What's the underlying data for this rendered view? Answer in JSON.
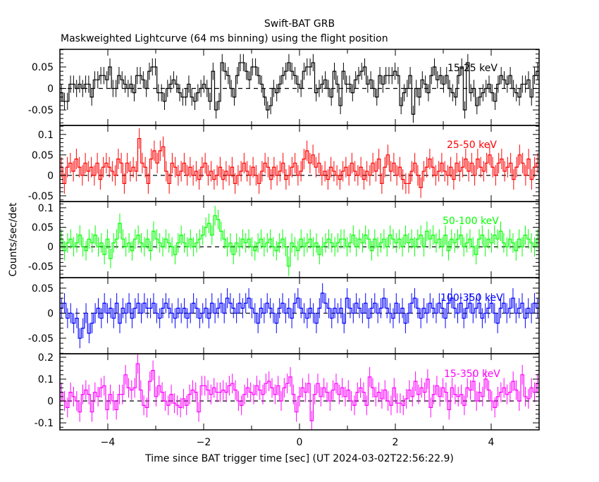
{
  "chart_data": [
    {
      "type": "line",
      "title": "Swift-BAT GRB",
      "subtitle": "Maskweighted Lightcurve (64 ms binning) using the flight position",
      "xlabel": "Time since BAT trigger time [sec] (UT 2024-03-02T22:56:22.9)",
      "ylabel": "Counts/sec/det",
      "xlim": [
        -5,
        5
      ],
      "x_ticks": [
        "-4",
        "-2",
        "0",
        "2",
        "4"
      ],
      "panels": [
        {
          "label": "15-25 keV",
          "color": "#000000",
          "ylim": [
            -0.086,
            0.091
          ],
          "y_ticks": [
            "0.05",
            "0",
            "-0.05"
          ],
          "y_tick_values": [
            0.05,
            0,
            -0.05
          ],
          "error": 0.02,
          "values": [
            -0.01,
            -0.03,
            -0.03,
            0.01,
            0.01,
            0,
            0.01,
            0,
            0.01,
            0.01,
            -0.02,
            0.02,
            0.02,
            0.03,
            0.03,
            0.02,
            0.05,
            0,
            0,
            0.03,
            0.02,
            0.01,
            0,
            0.01,
            -0.01,
            0.03,
            0.03,
            0.02,
            0,
            0.04,
            0.05,
            0.05,
            -0.01,
            -0.01,
            -0.03,
            0,
            0.01,
            0.02,
            0.01,
            -0.01,
            -0.02,
            -0.02,
            0.01,
            -0.02,
            -0.03,
            -0.01,
            0,
            0.01,
            0,
            -0.03,
            0.04,
            -0.05,
            -0.03,
            0.06,
            0.04,
            0.03,
            0,
            -0.02,
            0.03,
            0.06,
            0.06,
            0.04,
            0.02,
            0.05,
            0.05,
            0.03,
            0.01,
            -0.02,
            -0.05,
            -0.04,
            0,
            -0.01,
            0.01,
            0.03,
            0.04,
            0.06,
            0.04,
            0.03,
            0.01,
            0,
            0.04,
            0.05,
            0.05,
            0.06,
            -0.01,
            0,
            0.01,
            0.02,
            0,
            -0.02,
            0.04,
            0.01,
            -0.04,
            0.04,
            0.01,
            0.01,
            -0.01,
            0.02,
            0.03,
            0.04,
            0.05,
            0.01,
            0.02,
            0,
            -0.02,
            0.03,
            0.01,
            0.03,
            0.03,
            0.03,
            0.04,
            0.03,
            -0.04,
            -0.01,
            0,
            0.03,
            -0.06,
            0,
            -0.02,
            0.02,
            0.01,
            -0.01,
            0.03,
            0.05,
            0.02,
            0.03,
            0.01,
            0.03,
            0,
            -0.01,
            -0.02,
            0.03,
            0.05,
            -0.05,
            0.06,
            -0.01,
            0,
            -0.04,
            -0.02,
            -0.01,
            0,
            0.01,
            -0.01,
            -0.03,
            0.01,
            0.03,
            0.02,
            0.01,
            0.03,
            0,
            -0.01,
            -0.02,
            0.01,
            0.01,
            0.02,
            -0.02,
            0.03,
            0.04
          ]
        },
        {
          "label": "25-50 keV",
          "color": "#ff0000",
          "ylim": [
            -0.064,
            0.122
          ],
          "y_ticks": [
            "0.1",
            "0.05",
            "0",
            "-0.05"
          ],
          "y_tick_values": [
            0.1,
            0.05,
            0,
            -0.05
          ],
          "error": 0.025,
          "values": [
            0.02,
            -0.02,
            0.02,
            0.03,
            0.01,
            0.04,
            0.02,
            0,
            0.03,
            0.01,
            0.02,
            0,
            0.03,
            -0.01,
            0.02,
            0.03,
            0.02,
            0.01,
            0,
            0.04,
            0.03,
            -0.02,
            0.03,
            0.01,
            0.02,
            0.01,
            0.09,
            0.03,
            0.02,
            -0.02,
            0.04,
            0.06,
            0.03,
            0.06,
            0.07,
            0.01,
            -0.02,
            0.03,
            0.02,
            0,
            0.01,
            0.03,
            0,
            0.02,
            0,
            0.01,
            -0.01,
            0.02,
            0.03,
            0,
            0.01,
            -0.01,
            0,
            0.02,
            -0.01,
            0.01,
            0,
            0.02,
            -0.02,
            0,
            0.01,
            0.03,
            0.01,
            0,
            0.02,
            0,
            -0.02,
            0.01,
            0.03,
            0.02,
            -0.01,
            0.02,
            0,
            0.01,
            0.03,
            -0.01,
            0,
            0.02,
            0.03,
            0,
            0.01,
            0.04,
            0.06,
            0.03,
            0.05,
            0.02,
            0.03,
            0,
            0.01,
            -0.01,
            0.02,
            0.01,
            0,
            -0.01,
            0.01,
            0.02,
            0,
            0.03,
            0.01,
            0,
            0.02,
            -0.01,
            0.01,
            0,
            0.03,
            0.01,
            0.04,
            -0.02,
            0.02,
            0.05,
            0.01,
            0.03,
            0,
            0.02,
            -0.01,
            -0.02,
            -0.02,
            0.01,
            0.03,
            0,
            -0.03,
            0.01,
            0.02,
            0.04,
            0.02,
            0,
            0.01,
            0.03,
            0.01,
            0,
            0.02,
            -0.01,
            0.03,
            0.01,
            0.02,
            0.04,
            0.01,
            0.03,
            0,
            0.04,
            0.02,
            0.01,
            0.03,
            0.05,
            0.02,
            0,
            0.03,
            0.04,
            0.01,
            0.02,
            0.03,
            -0.01,
            0.02,
            0.05,
            0.03,
            0,
            0.04,
            -0.01,
            0.02,
            0.03
          ]
        },
        {
          "label": "50-100 keV",
          "color": "#00ff00",
          "ylim": [
            -0.079,
            0.116
          ],
          "y_ticks": [
            "0.1",
            "0.05",
            "0",
            "-0.05"
          ],
          "y_tick_values": [
            0.1,
            0.05,
            0,
            -0.05
          ],
          "error": 0.025,
          "values": [
            0.02,
            -0.01,
            0.01,
            0.02,
            0,
            0.01,
            0.03,
            0,
            -0.01,
            0.02,
            0.01,
            0.03,
            0,
            0.01,
            -0.02,
            0.02,
            -0.03,
            0.01,
            0.02,
            0.06,
            0.02,
            0,
            0.01,
            -0.01,
            0.02,
            0.03,
            0.01,
            0,
            0.02,
            -0.01,
            0.04,
            0.02,
            0.01,
            0,
            0.02,
            0.01,
            0,
            -0.02,
            0.01,
            0.03,
            0.01,
            0,
            0.02,
            0,
            0.01,
            0.02,
            0.03,
            0.05,
            0.06,
            0.03,
            0.08,
            0.07,
            0.04,
            0.02,
            0,
            0.01,
            -0.02,
            0.01,
            0,
            0.02,
            0.01,
            0.02,
            0,
            -0.01,
            0.01,
            0.02,
            0,
            0.01,
            0.02,
            0,
            -0.01,
            0.01,
            0.02,
            0,
            -0.05,
            0.01,
            0,
            -0.01,
            0.02,
            0,
            0.01,
            0.02,
            0,
            0.01,
            -0.02,
            0,
            0.01,
            0.02,
            0.01,
            0,
            0.01,
            0.02,
            0.02,
            0,
            0.01,
            0.03,
            0,
            0.02,
            0.01,
            0.03,
            0.02,
            -0.01,
            0.02,
            0,
            0.01,
            0.02,
            0,
            0.03,
            0.02,
            0.01,
            0.02,
            0,
            0.03,
            0.01,
            0.02,
            0,
            0.02,
            0.03,
            0,
            0.04,
            0.02,
            0.03,
            0.01,
            0.02,
            0,
            0.03,
            -0.01,
            0.02,
            0.01,
            0.02,
            0.03,
            0,
            0.01,
            0.02,
            0,
            -0.02,
            0.02,
            0.03,
            0,
            0.02,
            0.01,
            0.03,
            0.02,
            0.04,
            0.01,
            0,
            0.02,
            0.01,
            -0.01,
            0.02,
            0,
            0.03,
            0.02,
            0.01,
            0,
            0.02
          ]
        },
        {
          "label": "100-350 keV",
          "color": "#0000ff",
          "ylim": [
            -0.081,
            0.071
          ],
          "y_ticks": [
            "0.05",
            "0",
            "-0.05"
          ],
          "y_tick_values": [
            0.05,
            0,
            -0.05
          ],
          "error": 0.02,
          "values": [
            0.01,
            0.02,
            -0.01,
            0,
            -0.02,
            -0.01,
            -0.05,
            -0.03,
            0,
            -0.04,
            -0.02,
            0,
            0.01,
            -0.01,
            0.02,
            0,
            0.01,
            -0.01,
            0.02,
            -0.02,
            0.01,
            0,
            0.02,
            -0.01,
            0.01,
            0.02,
            0,
            0.02,
            0.01,
            0.01,
            0.02,
            0,
            -0.01,
            0.01,
            0.02,
            0.01,
            0,
            -0.01,
            0.01,
            0,
            0.01,
            -0.01,
            0,
            0.02,
            0.01,
            -0.01,
            0,
            0.01,
            -0.01,
            0.02,
            0,
            0.01,
            0.02,
            0,
            0.03,
            0.02,
            0.01,
            0,
            0.02,
            0.01,
            0.02,
            0.03,
            0.01,
            0,
            -0.02,
            0.01,
            0,
            0.02,
            0.01,
            0,
            -0.02,
            0.01,
            0.02,
            0,
            0.01,
            -0.01,
            0.02,
            0.03,
            0.01,
            0,
            -0.01,
            0.01,
            0,
            -0.02,
            0.01,
            0.04,
            0.02,
            0.01,
            -0.01,
            0.01,
            0,
            0.01,
            -0.02,
            0.03,
            0.01,
            0,
            0.02,
            0.01,
            0,
            0.02,
            -0.01,
            0.01,
            0.02,
            0,
            0.01,
            0.03,
            0.01,
            0,
            -0.01,
            0.02,
            0,
            0.01,
            -0.02,
            0,
            0.02,
            0.03,
            0.01,
            -0.01,
            0.01,
            0,
            0.02,
            0.01,
            0,
            0.02,
            0.01,
            -0.01,
            0.02,
            0.03,
            0.01,
            0,
            0.02,
            -0.01,
            0.01,
            0.02,
            0,
            0.01,
            0.02,
            -0.01,
            0,
            0.01,
            0.02,
            0,
            -0.02,
            0.01,
            0.02,
            0,
            0.01,
            0.03,
            0,
            0.01,
            0.02,
            -0.01,
            0.01,
            0,
            0.02,
            0.01
          ]
        },
        {
          "label": "15-350 keV",
          "color": "#ff00ff",
          "ylim": [
            -0.132,
            0.216
          ],
          "y_ticks": [
            "0.2",
            "0.1",
            "0",
            "-0.1"
          ],
          "y_tick_values": [
            0.2,
            0.1,
            0,
            -0.1
          ],
          "error": 0.045,
          "values": [
            0.04,
            0,
            -0.03,
            0.04,
            0.02,
            0,
            -0.05,
            0.03,
            0.05,
            0.03,
            -0.05,
            0.04,
            0.02,
            0.06,
            0.07,
            -0.04,
            0.03,
            0,
            -0.04,
            0.03,
            0.03,
            0.12,
            0.06,
            0.05,
            0.06,
            0.17,
            0.05,
            -0.02,
            -0.03,
            0.09,
            0.14,
            0.02,
            0.07,
            0.04,
            0,
            -0.02,
            0.03,
            -0.01,
            -0.02,
            -0.03,
            0.01,
            -0.02,
            0.03,
            0.05,
            0.04,
            -0.05,
            0.07,
            0.07,
            0.05,
            0.03,
            0.06,
            0.04,
            0.04,
            0.05,
            0.04,
            0.07,
            0.08,
            0.05,
            0,
            -0.02,
            0.03,
            0.06,
            0.04,
            0.03,
            0.07,
            0.05,
            0.03,
            0.08,
            0.09,
            0.06,
            0.03,
            0.07,
            0,
            0.06,
            0.08,
            0.11,
            0.03,
            -0.05,
            0.02,
            0.06,
            0.04,
            0.08,
            -0.09,
            0.03,
            0.08,
            0.02,
            0.06,
            0.04,
            0,
            0.05,
            0.08,
            0.03,
            0.06,
            0.02,
            0.05,
            0,
            -0.02,
            0.04,
            0.06,
            0.04,
            -0.02,
            0.11,
            0.06,
            0.02,
            0.04,
            0.01,
            0.05,
            0,
            -0.02,
            0.06,
            -0.01,
            -0.01,
            -0.02,
            0.01,
            0.05,
            0.02,
            0.09,
            0.03,
            0.06,
            0.04,
            0.1,
            -0.03,
            0.03,
            0.07,
            0.02,
            0.06,
            0.04,
            -0.04,
            0.06,
            0.03,
            0.02,
            0.03,
            -0.02,
            0.06,
            0.05,
            0.09,
            0,
            0.04,
            0.02,
            0.1,
            0.05,
            0,
            -0.03,
            0.02,
            0.04,
            0.06,
            0.03,
            0.04,
            0.09,
            0.05,
            0,
            0.12,
            0.02,
            0.01,
            0.06,
            0.04,
            0.08
          ]
        }
      ]
    }
  ]
}
